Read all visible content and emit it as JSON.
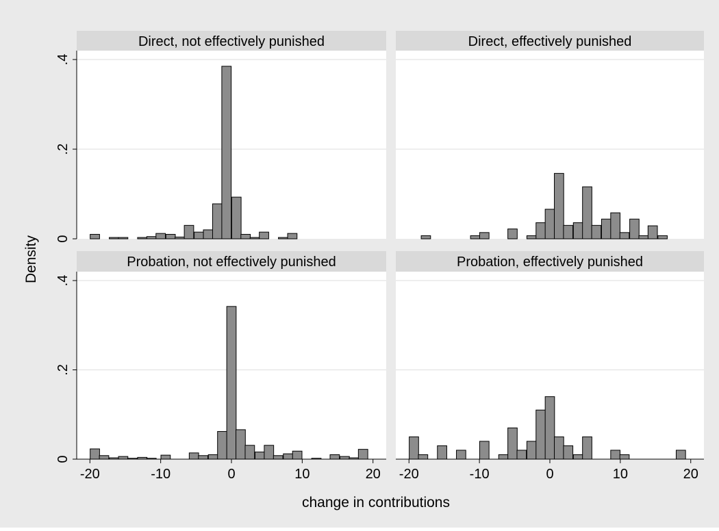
{
  "chart_data": {
    "type": "bar",
    "layout": "2x2 facet grid",
    "xlabel": "change in contributions",
    "ylabel": "Density",
    "x_ticks": [
      "-20",
      "-10",
      "0",
      "10",
      "20"
    ],
    "x_tick_values": [
      -20,
      -10,
      0,
      10,
      20
    ],
    "y_ticks": [
      "0",
      ".2",
      ".4"
    ],
    "y_tick_values": [
      0,
      0.2,
      0.4
    ],
    "xlim": [
      -20.9,
      20.9
    ],
    "ylim": [
      0,
      0.4
    ],
    "bin_width": 1.33,
    "grid": true,
    "colors": {
      "outer_background": "#eaeaea",
      "plot_background": "#ffffff",
      "strip_background": "#d9d9d9",
      "bar_fill": "#8c8c8c",
      "bar_stroke": "#000000",
      "gridline": "#e3e3e3",
      "text": "#000000"
    },
    "panels": [
      {
        "title": "Direct, not effectively punished",
        "bars": [
          {
            "x": -19.3,
            "y": 0.01
          },
          {
            "x": -16.6,
            "y": 0.003
          },
          {
            "x": -15.3,
            "y": 0.003
          },
          {
            "x": -12.6,
            "y": 0.003
          },
          {
            "x": -11.3,
            "y": 0.005
          },
          {
            "x": -10.0,
            "y": 0.012
          },
          {
            "x": -8.6,
            "y": 0.01
          },
          {
            "x": -7.3,
            "y": 0.004
          },
          {
            "x": -6.0,
            "y": 0.03
          },
          {
            "x": -4.6,
            "y": 0.015
          },
          {
            "x": -3.3,
            "y": 0.02
          },
          {
            "x": -2.0,
            "y": 0.078
          },
          {
            "x": -0.7,
            "y": 0.385
          },
          {
            "x": 0.7,
            "y": 0.093
          },
          {
            "x": 2.0,
            "y": 0.01
          },
          {
            "x": 3.3,
            "y": 0.003
          },
          {
            "x": 4.6,
            "y": 0.015
          },
          {
            "x": 7.3,
            "y": 0.003
          },
          {
            "x": 8.6,
            "y": 0.012
          }
        ]
      },
      {
        "title": "Direct, effectively punished",
        "bars": [
          {
            "x": -17.6,
            "y": 0.007
          },
          {
            "x": -10.6,
            "y": 0.007
          },
          {
            "x": -9.3,
            "y": 0.014
          },
          {
            "x": -5.3,
            "y": 0.022
          },
          {
            "x": -2.6,
            "y": 0.007
          },
          {
            "x": -1.3,
            "y": 0.036
          },
          {
            "x": 0.0,
            "y": 0.066
          },
          {
            "x": 1.3,
            "y": 0.146
          },
          {
            "x": 2.6,
            "y": 0.03
          },
          {
            "x": 4.0,
            "y": 0.036
          },
          {
            "x": 5.3,
            "y": 0.116
          },
          {
            "x": 6.6,
            "y": 0.03
          },
          {
            "x": 8.0,
            "y": 0.044
          },
          {
            "x": 9.3,
            "y": 0.058
          },
          {
            "x": 10.6,
            "y": 0.014
          },
          {
            "x": 12.0,
            "y": 0.044
          },
          {
            "x": 13.3,
            "y": 0.007
          },
          {
            "x": 14.6,
            "y": 0.029
          },
          {
            "x": 16.0,
            "y": 0.007
          }
        ]
      },
      {
        "title": "Probation, not effectively punished",
        "bars": [
          {
            "x": -19.3,
            "y": 0.023
          },
          {
            "x": -18.0,
            "y": 0.008
          },
          {
            "x": -16.6,
            "y": 0.003
          },
          {
            "x": -15.3,
            "y": 0.006
          },
          {
            "x": -14.0,
            "y": 0.002
          },
          {
            "x": -12.6,
            "y": 0.004
          },
          {
            "x": -11.3,
            "y": 0.002
          },
          {
            "x": -9.3,
            "y": 0.009
          },
          {
            "x": -5.3,
            "y": 0.014
          },
          {
            "x": -4.0,
            "y": 0.008
          },
          {
            "x": -2.6,
            "y": 0.01
          },
          {
            "x": -1.3,
            "y": 0.062
          },
          {
            "x": 0.0,
            "y": 0.342
          },
          {
            "x": 1.3,
            "y": 0.066
          },
          {
            "x": 2.6,
            "y": 0.031
          },
          {
            "x": 4.0,
            "y": 0.016
          },
          {
            "x": 5.3,
            "y": 0.031
          },
          {
            "x": 6.6,
            "y": 0.008
          },
          {
            "x": 8.0,
            "y": 0.012
          },
          {
            "x": 9.3,
            "y": 0.018
          },
          {
            "x": 12.0,
            "y": 0.002
          },
          {
            "x": 14.6,
            "y": 0.01
          },
          {
            "x": 16.0,
            "y": 0.006
          },
          {
            "x": 17.3,
            "y": 0.003
          },
          {
            "x": 18.6,
            "y": 0.022
          }
        ]
      },
      {
        "title": "Probation, effectively punished",
        "bars": [
          {
            "x": -19.3,
            "y": 0.05
          },
          {
            "x": -18.0,
            "y": 0.01
          },
          {
            "x": -15.3,
            "y": 0.03
          },
          {
            "x": -12.6,
            "y": 0.02
          },
          {
            "x": -9.3,
            "y": 0.04
          },
          {
            "x": -6.6,
            "y": 0.01
          },
          {
            "x": -5.3,
            "y": 0.07
          },
          {
            "x": -4.0,
            "y": 0.02
          },
          {
            "x": -2.6,
            "y": 0.04
          },
          {
            "x": -1.3,
            "y": 0.11
          },
          {
            "x": 0.0,
            "y": 0.14
          },
          {
            "x": 1.3,
            "y": 0.05
          },
          {
            "x": 2.6,
            "y": 0.03
          },
          {
            "x": 4.0,
            "y": 0.01
          },
          {
            "x": 5.3,
            "y": 0.05
          },
          {
            "x": 9.3,
            "y": 0.02
          },
          {
            "x": 10.6,
            "y": 0.01
          },
          {
            "x": 18.6,
            "y": 0.02
          }
        ]
      }
    ]
  }
}
